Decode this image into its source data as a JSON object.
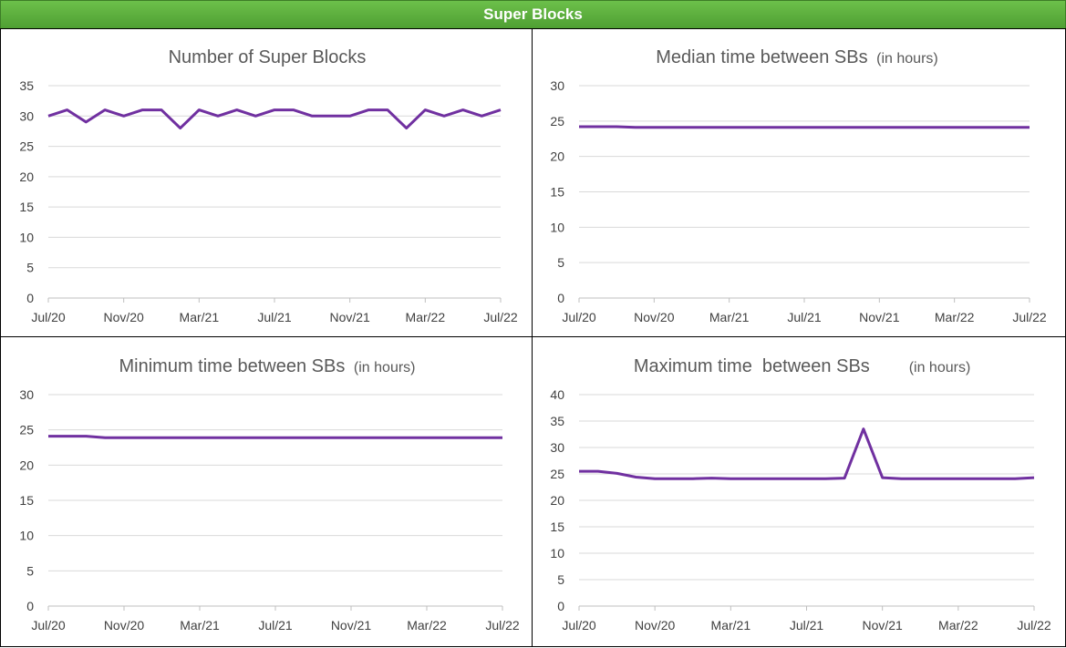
{
  "header": {
    "title": "Super Blocks"
  },
  "chart_data": [
    {
      "type": "line",
      "title": "Number of Super Blocks",
      "title_unit": "",
      "xlabel": "",
      "ylabel": "",
      "x_tick_labels": [
        "Jul/20",
        "Nov/20",
        "Mar/21",
        "Jul/21",
        "Nov/21",
        "Mar/22",
        "Jul/22"
      ],
      "yticks": [
        0,
        5,
        10,
        15,
        20,
        25,
        30,
        35
      ],
      "ylim": [
        0,
        35
      ],
      "grid": true,
      "legend": "none",
      "series": [
        {
          "color": "#7030a0",
          "values": [
            30,
            31,
            29,
            31,
            30,
            31,
            31,
            28,
            31,
            30,
            31,
            30,
            31,
            31,
            30,
            30,
            30,
            31,
            31,
            28,
            31,
            30,
            31,
            30,
            31
          ]
        }
      ]
    },
    {
      "type": "line",
      "title": "Median time between SBs",
      "title_unit": "(in hours)",
      "xlabel": "",
      "ylabel": "",
      "x_tick_labels": [
        "Jul/20",
        "Nov/20",
        "Mar/21",
        "Jul/21",
        "Nov/21",
        "Mar/22",
        "Jul/22"
      ],
      "yticks": [
        0,
        5,
        10,
        15,
        20,
        25,
        30
      ],
      "ylim": [
        0,
        30
      ],
      "grid": true,
      "legend": "none",
      "series": [
        {
          "color": "#7030a0",
          "values": [
            24.2,
            24.2,
            24.2,
            24.1,
            24.1,
            24.1,
            24.1,
            24.1,
            24.1,
            24.1,
            24.1,
            24.1,
            24.1,
            24.1,
            24.1,
            24.1,
            24.1,
            24.1,
            24.1,
            24.1,
            24.1,
            24.1,
            24.1,
            24.1,
            24.1
          ]
        }
      ]
    },
    {
      "type": "line",
      "title": "Minimum time between SBs",
      "title_unit": "(in hours)",
      "xlabel": "",
      "ylabel": "",
      "x_tick_labels": [
        "Jul/20",
        "Nov/20",
        "Mar/21",
        "Jul/21",
        "Nov/21",
        "Mar/22",
        "Jul/22"
      ],
      "yticks": [
        0,
        5,
        10,
        15,
        20,
        25,
        30
      ],
      "ylim": [
        0,
        30
      ],
      "grid": true,
      "legend": "none",
      "series": [
        {
          "color": "#7030a0",
          "values": [
            24.1,
            24.1,
            24.1,
            23.9,
            23.9,
            23.9,
            23.9,
            23.9,
            23.9,
            23.9,
            23.9,
            23.9,
            23.9,
            23.9,
            23.9,
            23.9,
            23.9,
            23.9,
            23.9,
            23.9,
            23.9,
            23.9,
            23.9,
            23.9,
            23.9
          ]
        }
      ]
    },
    {
      "type": "line",
      "title": "Maximum time  between SBs",
      "title_unit": "(in hours)",
      "xlabel": "",
      "ylabel": "",
      "x_tick_labels": [
        "Jul/20",
        "Nov/20",
        "Mar/21",
        "Jul/21",
        "Nov/21",
        "Mar/22",
        "Jul/22"
      ],
      "yticks": [
        0,
        5,
        10,
        15,
        20,
        25,
        30,
        35,
        40
      ],
      "ylim": [
        0,
        40
      ],
      "grid": true,
      "legend": "none",
      "series": [
        {
          "color": "#7030a0",
          "values": [
            25.5,
            25.5,
            25.1,
            24.4,
            24.1,
            24.1,
            24.1,
            24.2,
            24.1,
            24.1,
            24.1,
            24.1,
            24.1,
            24.1,
            24.2,
            33.5,
            24.3,
            24.1,
            24.1,
            24.1,
            24.1,
            24.1,
            24.1,
            24.1,
            24.3
          ]
        }
      ]
    }
  ]
}
